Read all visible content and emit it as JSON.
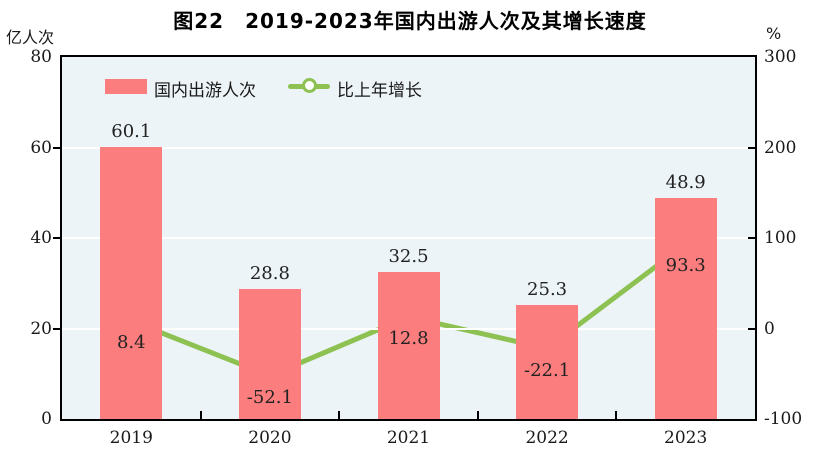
{
  "chart_data": {
    "type": "bar+line",
    "title": "图22　2019-2023年国内出游人次及其增长速度",
    "categories": [
      "2019",
      "2020",
      "2021",
      "2022",
      "2023"
    ],
    "series": [
      {
        "name": "国内出游人次",
        "type": "bar",
        "axis": "left",
        "unit": "亿人次",
        "values": [
          60.1,
          28.8,
          32.5,
          25.3,
          48.9
        ],
        "color": "#fb7d7d"
      },
      {
        "name": "比上年增长",
        "type": "line",
        "axis": "right",
        "unit": "%",
        "values": [
          8.4,
          -52.1,
          12.8,
          -22.1,
          93.3
        ],
        "color": "#8dc152",
        "marker": "open-circle",
        "marker_fill": "#ffffff"
      }
    ],
    "left_axis": {
      "unit": "亿人次",
      "min": 0,
      "max": 80,
      "ticks": [
        0,
        20,
        40,
        60,
        80
      ]
    },
    "right_axis": {
      "unit": "%",
      "min": -100,
      "max": 300,
      "ticks": [
        -100,
        0,
        100,
        200,
        300
      ]
    },
    "grid": true,
    "gridline_color": "#ffffff",
    "plot_bg": "#ecf4f7",
    "frame_color": "#000000",
    "legend_position": "top-left-inside"
  }
}
